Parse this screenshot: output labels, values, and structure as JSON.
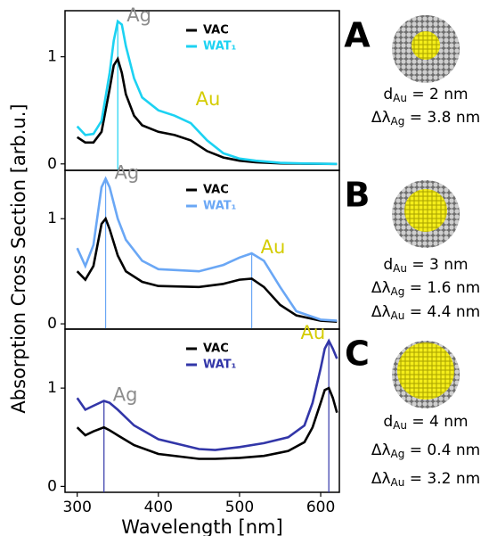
{
  "chart_data": [
    {
      "type": "line",
      "panel": "A",
      "x": [
        300,
        310,
        320,
        330,
        340,
        345,
        350,
        355,
        360,
        370,
        380,
        400,
        420,
        440,
        460,
        480,
        500,
        520,
        550,
        580,
        620
      ],
      "xlim": [
        285,
        623
      ],
      "ylim": [
        -0.06,
        1.43
      ],
      "yticks": [
        0,
        1
      ],
      "series": [
        {
          "name": "VAC",
          "color": "#000000",
          "values": [
            0.25,
            0.2,
            0.2,
            0.3,
            0.7,
            0.92,
            0.98,
            0.85,
            0.65,
            0.45,
            0.36,
            0.3,
            0.27,
            0.22,
            0.12,
            0.06,
            0.03,
            0.015,
            0.005,
            0.002,
            0
          ]
        },
        {
          "name": "WAT₁",
          "color": "#1cd2f2",
          "values": [
            0.35,
            0.27,
            0.28,
            0.4,
            0.85,
            1.15,
            1.33,
            1.3,
            1.1,
            0.8,
            0.62,
            0.5,
            0.45,
            0.38,
            0.22,
            0.1,
            0.05,
            0.03,
            0.01,
            0.004,
            0
          ]
        }
      ],
      "peaks": [
        {
          "label": "Ag",
          "x": 350,
          "color": "#8c8c8c"
        },
        {
          "label": "Au",
          "x": 435,
          "color": "#d4cc00",
          "noline": true
        }
      ],
      "info": [
        {
          "sym": "d",
          "sub": "Au",
          "text": " = 2 nm"
        },
        {
          "sym": "Δλ",
          "sub": "Ag",
          "text": " = 3.8 nm"
        }
      ]
    },
    {
      "type": "line",
      "panel": "B",
      "x": [
        300,
        310,
        320,
        330,
        335,
        340,
        350,
        360,
        380,
        400,
        450,
        480,
        500,
        515,
        530,
        550,
        570,
        600,
        620
      ],
      "xlim": [
        285,
        623
      ],
      "ylim": [
        -0.05,
        1.46
      ],
      "yticks": [
        0,
        1
      ],
      "ylabel": "Absorption Cross Section [arb.u.]",
      "series": [
        {
          "name": "VAC",
          "color": "#000000",
          "values": [
            0.5,
            0.42,
            0.55,
            0.95,
            1.0,
            0.9,
            0.65,
            0.5,
            0.4,
            0.36,
            0.35,
            0.38,
            0.42,
            0.43,
            0.35,
            0.18,
            0.08,
            0.03,
            0.02
          ]
        },
        {
          "name": "WAT₁",
          "color": "#6aa7f5",
          "values": [
            0.72,
            0.55,
            0.75,
            1.3,
            1.38,
            1.3,
            1.0,
            0.8,
            0.6,
            0.52,
            0.5,
            0.56,
            0.63,
            0.67,
            0.6,
            0.35,
            0.12,
            0.04,
            0.03
          ]
        }
      ],
      "peaks": [
        {
          "label": "Ag",
          "x": 335,
          "color": "#8c8c8c"
        },
        {
          "label": "Au",
          "x": 515,
          "color": "#d4cc00"
        }
      ],
      "info": [
        {
          "sym": "d",
          "sub": "Au",
          "text": " = 3 nm"
        },
        {
          "sym": "Δλ",
          "sub": "Ag",
          "text": " = 1.6 nm"
        },
        {
          "sym": "Δλ",
          "sub": "Au",
          "text": " = 4.4 nm"
        }
      ]
    },
    {
      "type": "line",
      "panel": "C",
      "x": [
        300,
        310,
        320,
        333,
        340,
        350,
        370,
        400,
        450,
        470,
        500,
        530,
        560,
        580,
        590,
        600,
        605,
        610,
        615,
        620
      ],
      "xlim": [
        285,
        623
      ],
      "ylim": [
        -0.06,
        1.6
      ],
      "yticks": [
        0,
        1
      ],
      "xticks": [
        300,
        400,
        500,
        600
      ],
      "xlabel": "Wavelength [nm]",
      "series": [
        {
          "name": "VAC",
          "color": "#000000",
          "values": [
            0.6,
            0.52,
            0.56,
            0.6,
            0.57,
            0.52,
            0.42,
            0.33,
            0.28,
            0.28,
            0.29,
            0.31,
            0.36,
            0.45,
            0.6,
            0.85,
            0.98,
            1.0,
            0.9,
            0.75
          ]
        },
        {
          "name": "WAT₁",
          "color": "#3236a8",
          "values": [
            0.9,
            0.78,
            0.82,
            0.87,
            0.85,
            0.78,
            0.62,
            0.48,
            0.38,
            0.37,
            0.4,
            0.44,
            0.5,
            0.62,
            0.85,
            1.2,
            1.4,
            1.48,
            1.4,
            1.3
          ]
        }
      ],
      "peaks": [
        {
          "label": "Ag",
          "x": 333,
          "color": "#8c8c8c"
        },
        {
          "label": "Au",
          "x": 610,
          "color": "#d4cc00"
        }
      ],
      "info": [
        {
          "sym": "d",
          "sub": "Au",
          "text": " = 4 nm"
        },
        {
          "sym": "Δλ",
          "sub": "Ag",
          "text": " = 0.4 nm"
        },
        {
          "sym": "Δλ",
          "sub": "Au",
          "text": " = 3.2 nm"
        }
      ]
    }
  ]
}
